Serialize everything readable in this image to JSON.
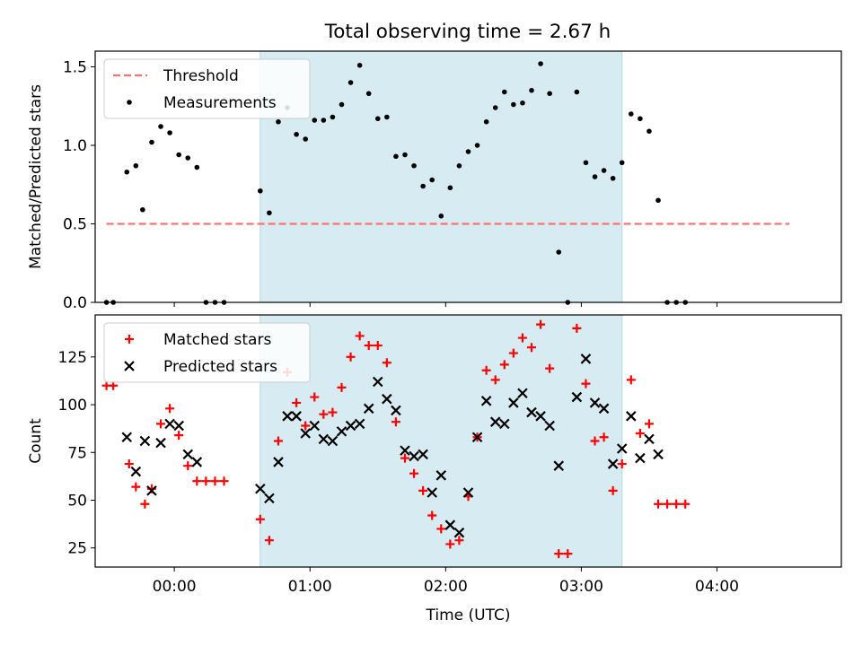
{
  "title": "Total observing time = 2.67 h",
  "chart_data": [
    {
      "type": "scatter",
      "ylabel": "Matched/Predicted stars",
      "ylim": [
        0,
        1.6
      ],
      "yticks": [
        "0.0",
        "0.5",
        "1.0",
        "1.5"
      ],
      "xlim": [
        "23:25",
        "04:55"
      ],
      "xticks": [
        "00:00",
        "01:00",
        "02:00",
        "03:00",
        "04:00"
      ],
      "shaded_interval": [
        "00:38",
        "03:18"
      ],
      "legend_position": "top-left",
      "threshold": {
        "name": "Threshold",
        "value": 0.5,
        "x_range": [
          "23:30",
          "04:32"
        ],
        "color": "#ff7070"
      },
      "series": [
        {
          "name": "Measurements",
          "color": "#000000",
          "points": [
            [
              "23:30",
              0.0
            ],
            [
              "23:33",
              0.0
            ],
            [
              "23:39",
              0.83
            ],
            [
              "23:43",
              0.87
            ],
            [
              "23:46",
              0.59
            ],
            [
              "23:50",
              1.02
            ],
            [
              "23:54",
              1.12
            ],
            [
              "23:58",
              1.08
            ],
            [
              "00:02",
              0.94
            ],
            [
              "00:06",
              0.92
            ],
            [
              "00:10",
              0.86
            ],
            [
              "00:14",
              0.0
            ],
            [
              "00:18",
              0.0
            ],
            [
              "00:22",
              0.0
            ],
            [
              "00:38",
              0.71
            ],
            [
              "00:42",
              0.57
            ],
            [
              "00:46",
              1.15
            ],
            [
              "00:50",
              1.24
            ],
            [
              "00:54",
              1.07
            ],
            [
              "00:58",
              1.04
            ],
            [
              "01:02",
              1.16
            ],
            [
              "01:06",
              1.16
            ],
            [
              "01:10",
              1.18
            ],
            [
              "01:14",
              1.26
            ],
            [
              "01:18",
              1.4
            ],
            [
              "01:22",
              1.51
            ],
            [
              "01:26",
              1.33
            ],
            [
              "01:30",
              1.17
            ],
            [
              "01:34",
              1.18
            ],
            [
              "01:38",
              0.93
            ],
            [
              "01:42",
              0.94
            ],
            [
              "01:46",
              0.87
            ],
            [
              "01:50",
              0.74
            ],
            [
              "01:54",
              0.78
            ],
            [
              "01:58",
              0.55
            ],
            [
              "02:02",
              0.73
            ],
            [
              "02:06",
              0.87
            ],
            [
              "02:10",
              0.96
            ],
            [
              "02:14",
              1.0
            ],
            [
              "02:18",
              1.15
            ],
            [
              "02:22",
              1.24
            ],
            [
              "02:26",
              1.34
            ],
            [
              "02:30",
              1.26
            ],
            [
              "02:34",
              1.27
            ],
            [
              "02:38",
              1.35
            ],
            [
              "02:42",
              1.52
            ],
            [
              "02:46",
              1.33
            ],
            [
              "02:50",
              0.32
            ],
            [
              "02:54",
              0.0
            ],
            [
              "02:58",
              1.34
            ],
            [
              "03:02",
              0.89
            ],
            [
              "03:06",
              0.8
            ],
            [
              "03:10",
              0.84
            ],
            [
              "03:14",
              0.79
            ],
            [
              "03:18",
              0.89
            ],
            [
              "03:22",
              1.2
            ],
            [
              "03:26",
              1.17
            ],
            [
              "03:30",
              1.09
            ],
            [
              "03:34",
              0.65
            ],
            [
              "03:38",
              0.0
            ],
            [
              "03:42",
              0.0
            ],
            [
              "03:46",
              0.0
            ]
          ]
        }
      ]
    },
    {
      "type": "scatter",
      "xlabel": "Time (UTC)",
      "ylabel": "Count",
      "ylim": [
        15,
        147
      ],
      "yticks": [
        "25",
        "50",
        "75",
        "100",
        "125"
      ],
      "xlim": [
        "23:25",
        "04:55"
      ],
      "xticks": [
        "00:00",
        "01:00",
        "02:00",
        "03:00",
        "04:00"
      ],
      "shaded_interval": [
        "00:38",
        "03:18"
      ],
      "legend_position": "top-left",
      "series": [
        {
          "name": "Matched stars",
          "marker": "plus",
          "color": "#ff0000",
          "points": [
            [
              "23:30",
              110
            ],
            [
              "23:33",
              110
            ],
            [
              "23:40",
              69
            ],
            [
              "23:43",
              57
            ],
            [
              "23:47",
              48
            ],
            [
              "23:50",
              56
            ],
            [
              "23:54",
              90
            ],
            [
              "23:58",
              98
            ],
            [
              "00:02",
              84
            ],
            [
              "00:06",
              68
            ],
            [
              "00:10",
              60
            ],
            [
              "00:14",
              60
            ],
            [
              "00:18",
              60
            ],
            [
              "00:22",
              60
            ],
            [
              "00:38",
              40
            ],
            [
              "00:42",
              29
            ],
            [
              "00:46",
              81
            ],
            [
              "00:50",
              117
            ],
            [
              "00:54",
              101
            ],
            [
              "00:58",
              89
            ],
            [
              "01:02",
              104
            ],
            [
              "01:06",
              95
            ],
            [
              "01:10",
              96
            ],
            [
              "01:14",
              109
            ],
            [
              "01:18",
              125
            ],
            [
              "01:22",
              136
            ],
            [
              "01:26",
              131
            ],
            [
              "01:30",
              131
            ],
            [
              "01:34",
              122
            ],
            [
              "01:38",
              91
            ],
            [
              "01:42",
              72
            ],
            [
              "01:46",
              64
            ],
            [
              "01:50",
              55
            ],
            [
              "01:54",
              42
            ],
            [
              "01:58",
              35
            ],
            [
              "02:02",
              27
            ],
            [
              "02:06",
              29
            ],
            [
              "02:10",
              52
            ],
            [
              "02:14",
              83
            ],
            [
              "02:18",
              118
            ],
            [
              "02:22",
              113
            ],
            [
              "02:26",
              121
            ],
            [
              "02:30",
              127
            ],
            [
              "02:34",
              135
            ],
            [
              "02:38",
              130
            ],
            [
              "02:42",
              142
            ],
            [
              "02:46",
              119
            ],
            [
              "02:50",
              22
            ],
            [
              "02:54",
              22
            ],
            [
              "02:58",
              140
            ],
            [
              "03:02",
              111
            ],
            [
              "03:06",
              81
            ],
            [
              "03:10",
              83
            ],
            [
              "03:14",
              55
            ],
            [
              "03:18",
              69
            ],
            [
              "03:22",
              113
            ],
            [
              "03:26",
              85
            ],
            [
              "03:30",
              90
            ],
            [
              "03:34",
              48
            ],
            [
              "03:38",
              48
            ],
            [
              "03:42",
              48
            ],
            [
              "03:46",
              48
            ]
          ]
        },
        {
          "name": "Predicted stars",
          "marker": "x",
          "color": "#000000",
          "points": [
            [
              "23:39",
              83
            ],
            [
              "23:43",
              65
            ],
            [
              "23:47",
              81
            ],
            [
              "23:50",
              55
            ],
            [
              "23:54",
              80
            ],
            [
              "23:58",
              90
            ],
            [
              "00:02",
              89
            ],
            [
              "00:06",
              74
            ],
            [
              "00:10",
              70
            ],
            [
              "00:38",
              56
            ],
            [
              "00:42",
              51
            ],
            [
              "00:46",
              70
            ],
            [
              "00:50",
              94
            ],
            [
              "00:54",
              94
            ],
            [
              "00:58",
              85
            ],
            [
              "01:02",
              89
            ],
            [
              "01:06",
              82
            ],
            [
              "01:10",
              81
            ],
            [
              "01:14",
              86
            ],
            [
              "01:18",
              89
            ],
            [
              "01:22",
              90
            ],
            [
              "01:26",
              98
            ],
            [
              "01:30",
              112
            ],
            [
              "01:34",
              103
            ],
            [
              "01:38",
              97
            ],
            [
              "01:42",
              76
            ],
            [
              "01:46",
              73
            ],
            [
              "01:50",
              74
            ],
            [
              "01:54",
              54
            ],
            [
              "01:58",
              63
            ],
            [
              "02:02",
              37
            ],
            [
              "02:06",
              33
            ],
            [
              "02:10",
              54
            ],
            [
              "02:14",
              83
            ],
            [
              "02:18",
              102
            ],
            [
              "02:22",
              91
            ],
            [
              "02:26",
              90
            ],
            [
              "02:30",
              101
            ],
            [
              "02:34",
              106
            ],
            [
              "02:38",
              96
            ],
            [
              "02:42",
              94
            ],
            [
              "02:46",
              89
            ],
            [
              "02:50",
              68
            ],
            [
              "02:58",
              104
            ],
            [
              "03:02",
              124
            ],
            [
              "03:06",
              101
            ],
            [
              "03:10",
              98
            ],
            [
              "03:14",
              69
            ],
            [
              "03:18",
              77
            ],
            [
              "03:22",
              94
            ],
            [
              "03:26",
              72
            ],
            [
              "03:30",
              82
            ],
            [
              "03:34",
              74
            ]
          ]
        }
      ]
    }
  ]
}
